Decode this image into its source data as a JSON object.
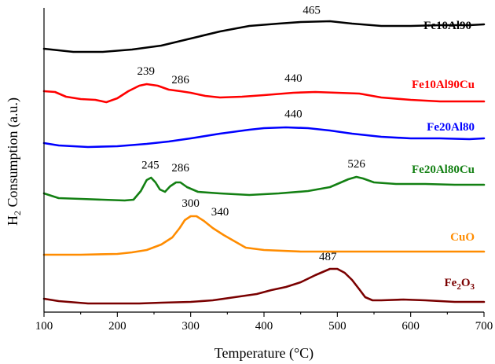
{
  "chart_data": {
    "type": "line",
    "xlabel": "Temperature (°C)",
    "ylabel": {
      "prefix": "H",
      "sub": "2",
      "suffix": " Consumption (a.u.)"
    },
    "xlim": [
      100,
      700
    ],
    "xticks": [
      100,
      200,
      300,
      400,
      500,
      600,
      700
    ],
    "grid": false,
    "series": [
      {
        "name": "Fe10Al90",
        "label_parts": [
          {
            "t": "Fe10Al90"
          }
        ],
        "color": "#000000",
        "peaks": [
          465
        ],
        "points": [
          [
            100,
            62
          ],
          [
            140,
            66
          ],
          [
            180,
            66
          ],
          [
            220,
            63
          ],
          [
            260,
            58
          ],
          [
            300,
            49
          ],
          [
            340,
            40
          ],
          [
            380,
            33
          ],
          [
            420,
            30
          ],
          [
            450,
            28
          ],
          [
            490,
            27
          ],
          [
            520,
            30
          ],
          [
            560,
            33
          ],
          [
            600,
            33
          ],
          [
            640,
            32
          ],
          [
            680,
            32
          ],
          [
            700,
            31
          ]
        ]
      },
      {
        "name": "Fe10Al90Cu",
        "label_parts": [
          {
            "t": "Fe10Al90Cu"
          }
        ],
        "color": "#ff0000",
        "peaks": [
          239,
          286,
          440
        ],
        "points": [
          [
            100,
            116
          ],
          [
            115,
            117
          ],
          [
            130,
            123
          ],
          [
            150,
            126
          ],
          [
            170,
            127
          ],
          [
            185,
            130
          ],
          [
            200,
            125
          ],
          [
            215,
            116
          ],
          [
            230,
            109
          ],
          [
            240,
            107
          ],
          [
            255,
            109
          ],
          [
            270,
            114
          ],
          [
            286,
            116
          ],
          [
            300,
            118
          ],
          [
            320,
            122
          ],
          [
            340,
            124
          ],
          [
            370,
            123
          ],
          [
            400,
            121
          ],
          [
            440,
            118
          ],
          [
            470,
            117
          ],
          [
            500,
            118
          ],
          [
            530,
            119
          ],
          [
            560,
            124
          ],
          [
            600,
            127
          ],
          [
            640,
            129
          ],
          [
            680,
            129
          ],
          [
            700,
            129
          ]
        ]
      },
      {
        "name": "Fe20Al80",
        "label_parts": [
          {
            "t": "Fe20Al80"
          }
        ],
        "color": "#0000ff",
        "peaks": [
          440
        ],
        "points": [
          [
            100,
            182
          ],
          [
            120,
            185
          ],
          [
            160,
            187
          ],
          [
            200,
            186
          ],
          [
            240,
            183
          ],
          [
            270,
            180
          ],
          [
            300,
            176
          ],
          [
            340,
            170
          ],
          [
            380,
            165
          ],
          [
            400,
            163
          ],
          [
            430,
            162
          ],
          [
            460,
            163
          ],
          [
            490,
            166
          ],
          [
            520,
            170
          ],
          [
            560,
            174
          ],
          [
            600,
            176
          ],
          [
            640,
            176
          ],
          [
            680,
            177
          ],
          [
            700,
            176
          ]
        ]
      },
      {
        "name": "Fe20Al80Cu",
        "label_parts": [
          {
            "t": "Fe20Al80Cu"
          }
        ],
        "color": "#138013",
        "peaks": [
          245,
          286,
          526
        ],
        "points": [
          [
            100,
            246
          ],
          [
            120,
            252
          ],
          [
            150,
            253
          ],
          [
            180,
            254
          ],
          [
            210,
            255
          ],
          [
            222,
            254
          ],
          [
            232,
            243
          ],
          [
            240,
            229
          ],
          [
            246,
            226
          ],
          [
            252,
            232
          ],
          [
            258,
            241
          ],
          [
            265,
            244
          ],
          [
            272,
            237
          ],
          [
            280,
            232
          ],
          [
            286,
            232
          ],
          [
            295,
            238
          ],
          [
            310,
            244
          ],
          [
            340,
            246
          ],
          [
            380,
            248
          ],
          [
            420,
            246
          ],
          [
            460,
            243
          ],
          [
            490,
            238
          ],
          [
            505,
            232
          ],
          [
            515,
            228
          ],
          [
            526,
            225
          ],
          [
            535,
            227
          ],
          [
            550,
            232
          ],
          [
            580,
            234
          ],
          [
            620,
            234
          ],
          [
            660,
            235
          ],
          [
            700,
            235
          ]
        ]
      },
      {
        "name": "CuO",
        "label_parts": [
          {
            "t": "CuO"
          }
        ],
        "color": "#ff8c00",
        "peaks": [
          300,
          340
        ],
        "points": [
          [
            100,
            324
          ],
          [
            150,
            324
          ],
          [
            200,
            323
          ],
          [
            220,
            321
          ],
          [
            240,
            318
          ],
          [
            260,
            311
          ],
          [
            275,
            302
          ],
          [
            285,
            290
          ],
          [
            292,
            280
          ],
          [
            300,
            275
          ],
          [
            308,
            275
          ],
          [
            318,
            281
          ],
          [
            330,
            290
          ],
          [
            345,
            299
          ],
          [
            360,
            307
          ],
          [
            375,
            315
          ],
          [
            400,
            318
          ],
          [
            450,
            320
          ],
          [
            500,
            320
          ],
          [
            550,
            320
          ],
          [
            600,
            320
          ],
          [
            650,
            320
          ],
          [
            700,
            320
          ]
        ]
      },
      {
        "name": "Fe2O3",
        "label_parts": [
          {
            "t": "Fe"
          },
          {
            "t": "2",
            "sub": true
          },
          {
            "t": "O"
          },
          {
            "t": "3",
            "sub": true
          }
        ],
        "color": "#7a0000",
        "peaks": [
          487
        ],
        "points": [
          [
            100,
            380
          ],
          [
            120,
            383
          ],
          [
            160,
            386
          ],
          [
            200,
            386
          ],
          [
            230,
            386
          ],
          [
            260,
            385
          ],
          [
            300,
            384
          ],
          [
            330,
            382
          ],
          [
            360,
            378
          ],
          [
            390,
            374
          ],
          [
            410,
            369
          ],
          [
            430,
            365
          ],
          [
            450,
            359
          ],
          [
            470,
            350
          ],
          [
            490,
            342
          ],
          [
            500,
            342
          ],
          [
            510,
            347
          ],
          [
            520,
            356
          ],
          [
            530,
            368
          ],
          [
            538,
            378
          ],
          [
            548,
            382
          ],
          [
            560,
            382
          ],
          [
            590,
            381
          ],
          [
            620,
            382
          ],
          [
            660,
            384
          ],
          [
            700,
            384
          ]
        ]
      }
    ]
  }
}
